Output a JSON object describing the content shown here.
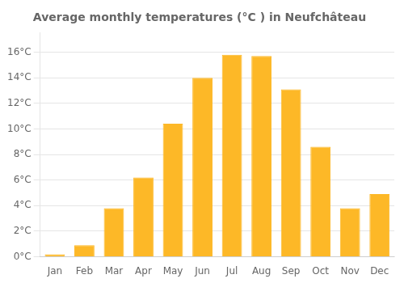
{
  "chart_data": {
    "type": "bar",
    "title": "Average monthly temperatures (°C ) in Neufchâteau",
    "categories": [
      "Jan",
      "Feb",
      "Mar",
      "Apr",
      "May",
      "Jun",
      "Jul",
      "Aug",
      "Sep",
      "Oct",
      "Nov",
      "Dec"
    ],
    "values": [
      0.2,
      0.9,
      3.8,
      6.2,
      10.4,
      14.0,
      15.8,
      15.7,
      13.1,
      8.6,
      3.8,
      4.9
    ],
    "color": "#FDB827",
    "ylim": [
      0,
      17.5
    ],
    "yticks": [
      {
        "value": 0,
        "label": "0°C"
      },
      {
        "value": 2,
        "label": "2°C"
      },
      {
        "value": 4,
        "label": "4°C"
      },
      {
        "value": 6,
        "label": "6°C"
      },
      {
        "value": 8,
        "label": "8°C"
      },
      {
        "value": 10,
        "label": "10°C"
      },
      {
        "value": 12,
        "label": "12°C"
      },
      {
        "value": 14,
        "label": "14°C"
      },
      {
        "value": 16,
        "label": "16°C"
      }
    ],
    "grid": true
  }
}
